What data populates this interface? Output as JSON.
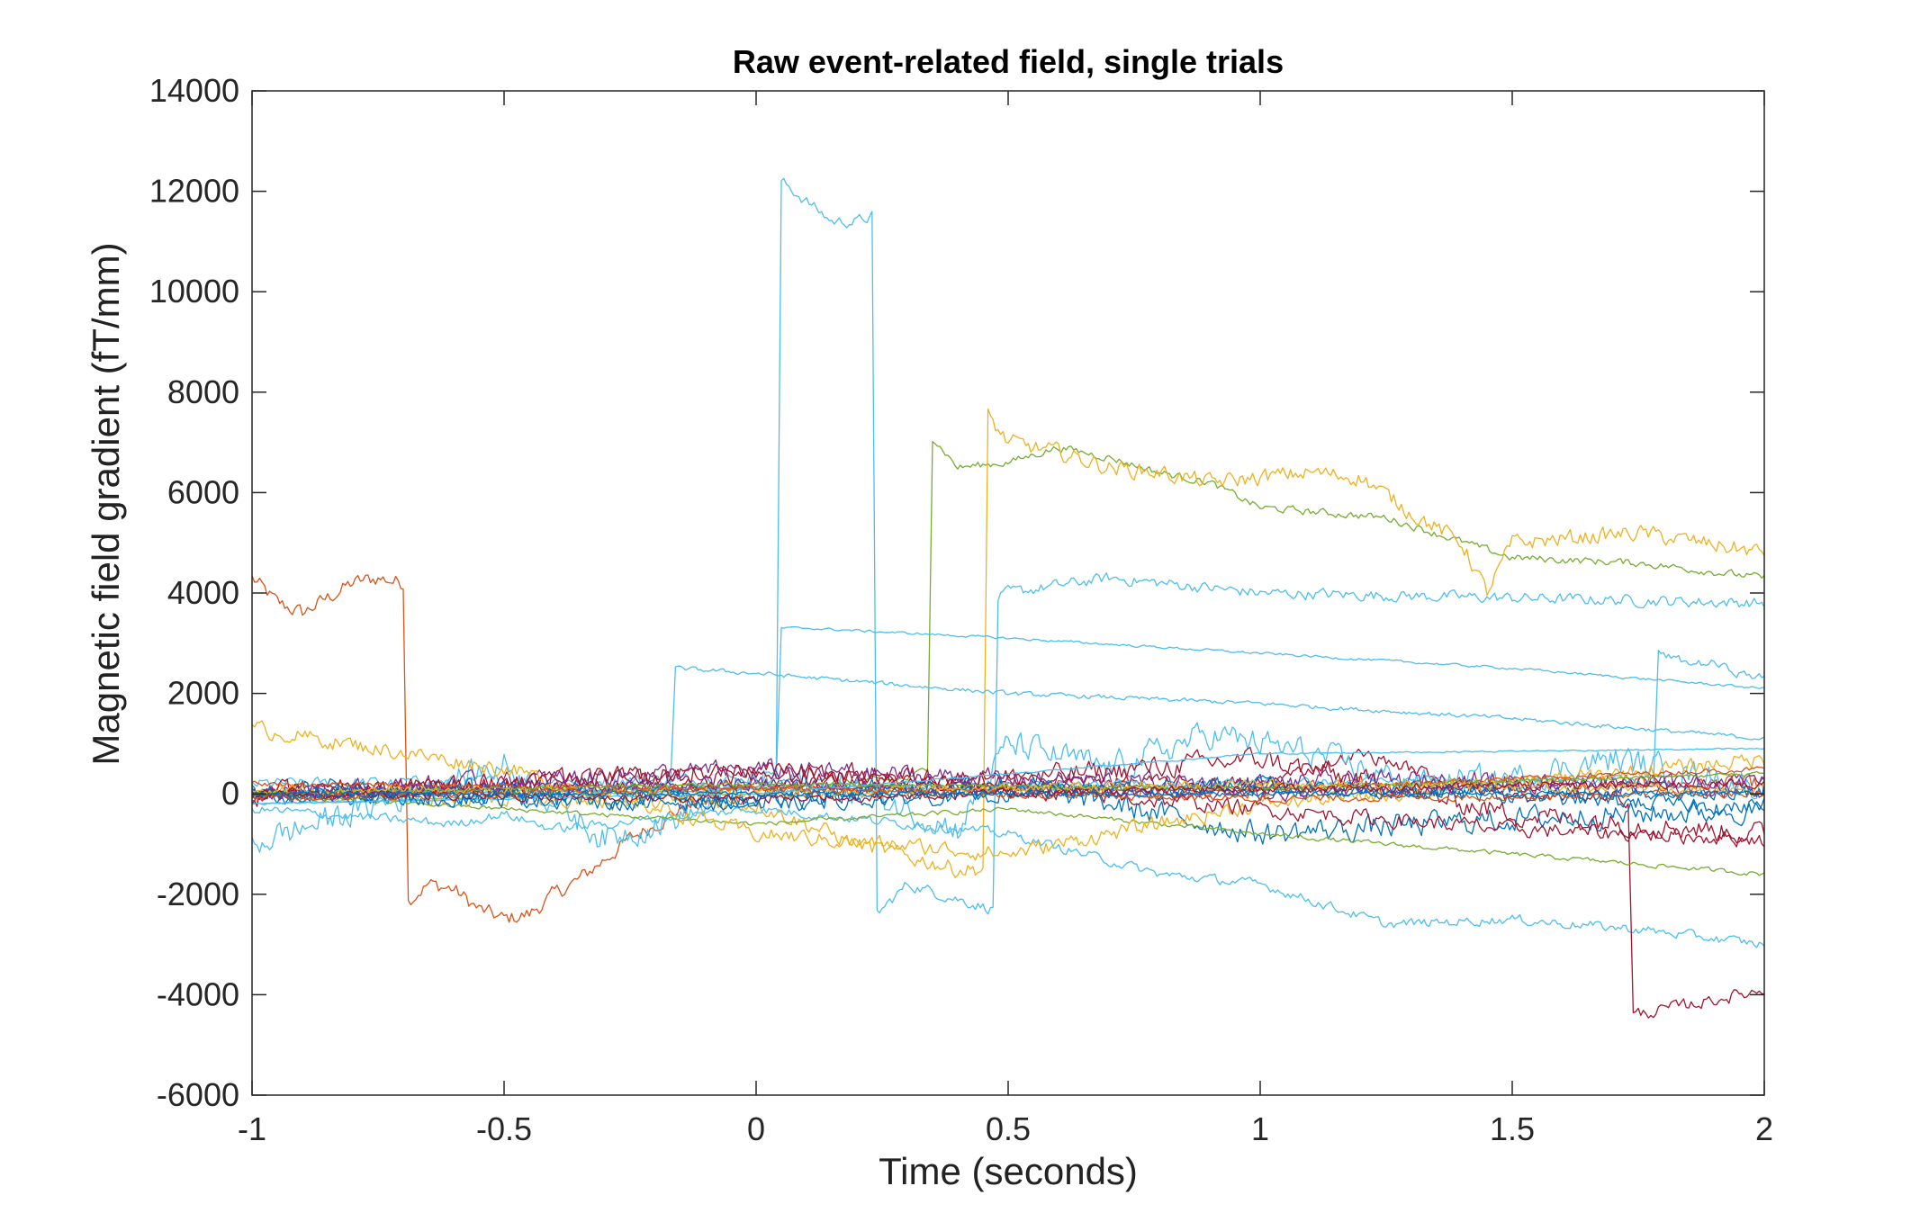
{
  "chart_data": {
    "type": "line",
    "title": "Raw event-related field, single trials",
    "xlabel": "Time (seconds)",
    "ylabel": "Magnetic field gradient (fT/mm)",
    "xlim": [
      -1,
      2
    ],
    "ylim": [
      -6000,
      14000
    ],
    "xticks": [
      -1,
      -0.5,
      0,
      0.5,
      1,
      1.5,
      2
    ],
    "xtick_labels": [
      "-1",
      "-0.5",
      "0",
      "0.5",
      "1",
      "1.5",
      "2"
    ],
    "yticks": [
      -6000,
      -4000,
      -2000,
      0,
      2000,
      4000,
      6000,
      8000,
      10000,
      12000,
      14000
    ],
    "ytick_labels": [
      "-6000",
      "-4000",
      "-2000",
      "0",
      "2000",
      "4000",
      "6000",
      "8000",
      "10000",
      "12000",
      "14000"
    ],
    "grid": false,
    "legend": "none",
    "colors": [
      "#0072BD",
      "#D95319",
      "#EDB120",
      "#7E2F8E",
      "#77AC30",
      "#4DBEEE",
      "#A2142F"
    ],
    "series": [
      {
        "color": "#D95319",
        "x": [
          -1,
          -0.95,
          -0.9,
          -0.85,
          -0.8,
          -0.75,
          -0.7,
          -0.69,
          -0.65,
          -0.6,
          -0.55,
          -0.5,
          -0.45,
          -0.4,
          -0.35,
          -0.3,
          -0.25,
          -0.2,
          -0.15,
          -0.1,
          0,
          0.5,
          1,
          1.5,
          2
        ],
        "y": [
          4300,
          3800,
          3600,
          3900,
          4200,
          4300,
          4200,
          -2100,
          -1800,
          -1900,
          -2300,
          -2500,
          -2400,
          -2000,
          -1700,
          -1300,
          -900,
          -600,
          -300,
          -200,
          0,
          100,
          100,
          200,
          200
        ],
        "noise": 250
      },
      {
        "color": "#4DBEEE",
        "x": [
          -1,
          0,
          0.04,
          0.05,
          0.1,
          0.15,
          0.2,
          0.23,
          0.24,
          0.3,
          0.4,
          0.47,
          0.48,
          0.5,
          0.7,
          1,
          1.5,
          2
        ],
        "y": [
          200,
          300,
          500,
          12200,
          11800,
          11400,
          11400,
          11500,
          -2400,
          -1800,
          -2100,
          -2300,
          3900,
          4000,
          4300,
          4000,
          3900,
          3800
        ],
        "noise": 180
      },
      {
        "color": "#77AC30",
        "x": [
          -1,
          0,
          0.3,
          0.34,
          0.35,
          0.4,
          0.5,
          0.6,
          0.7,
          0.8,
          0.9,
          1,
          1.25,
          1.5,
          1.75,
          2
        ],
        "y": [
          0,
          100,
          300,
          500,
          7100,
          6500,
          6600,
          6900,
          6700,
          6400,
          6200,
          5700,
          5500,
          4700,
          4600,
          4300
        ],
        "noise": 120
      },
      {
        "color": "#EDB120",
        "x": [
          -1,
          0,
          0.2,
          0.4,
          0.45,
          0.46,
          0.5,
          0.6,
          0.7,
          0.8,
          0.9,
          1,
          1.1,
          1.2,
          1.3,
          1.4,
          1.45,
          1.5,
          1.75,
          2
        ],
        "y": [
          0,
          -200,
          -1000,
          -1500,
          -1500,
          7500,
          7000,
          6800,
          6500,
          6400,
          6200,
          6300,
          6400,
          6300,
          5600,
          5000,
          4000,
          5000,
          5200,
          4800
        ],
        "noise": 260
      },
      {
        "color": "#4DBEEE",
        "x": [
          -1,
          -0.2,
          -0.17,
          -0.16,
          0,
          0.5,
          1,
          1.5,
          2
        ],
        "y": [
          0,
          100,
          200,
          2500,
          2400,
          2000,
          1800,
          1500,
          1100
        ],
        "noise": 70
      },
      {
        "color": "#4DBEEE",
        "x": [
          -1,
          0,
          0.04,
          0.05,
          0.1,
          0.5,
          1,
          1.5,
          2
        ],
        "y": [
          -200,
          100,
          300,
          3300,
          3300,
          3100,
          2800,
          2500,
          2100
        ],
        "noise": 40
      },
      {
        "color": "#4DBEEE",
        "x": [
          -1,
          -0.6,
          -0.5,
          -0.4,
          0,
          0.5,
          0.8,
          1,
          1.25,
          1.5,
          1.75,
          2
        ],
        "y": [
          -300,
          -600,
          -400,
          -700,
          -300,
          -800,
          -1600,
          -1800,
          -2600,
          -2500,
          -2700,
          -3000
        ],
        "noise": 150
      },
      {
        "color": "#A2142F",
        "x": [
          -1,
          0,
          0.5,
          1,
          1.2,
          1.5,
          1.7,
          1.73,
          1.74,
          1.8,
          1.9,
          2
        ],
        "y": [
          0,
          200,
          300,
          200,
          800,
          -100,
          0,
          -200,
          -4400,
          -4300,
          -4100,
          -3900
        ],
        "noise": 200
      },
      {
        "color": "#4DBEEE",
        "x": [
          -1,
          1.7,
          1.78,
          1.79,
          1.85,
          1.9,
          1.95,
          2
        ],
        "y": [
          0,
          300,
          200,
          2800,
          2600,
          2600,
          2400,
          2300
        ],
        "noise": 130
      },
      {
        "color": "#4DBEEE",
        "x": [
          -1,
          -0.5,
          -0.3,
          -0.1,
          0,
          0.2,
          0.4,
          0.5,
          0.7,
          0.9,
          1.1,
          1.3,
          1.5,
          1.7,
          2
        ],
        "y": [
          -1000,
          600,
          -900,
          -300,
          300,
          100,
          -700,
          1000,
          500,
          1200,
          800,
          200,
          300,
          700,
          100
        ],
        "noise": 450
      },
      {
        "color": "#A2142F",
        "x": [
          -1,
          0,
          0.5,
          1,
          1.5,
          2
        ],
        "y": [
          0,
          400,
          300,
          700,
          -400,
          -800
        ],
        "noise": 350
      },
      {
        "color": "#0072BD",
        "x": [
          -1,
          0,
          0.5,
          1,
          1.5,
          2
        ],
        "y": [
          100,
          -100,
          200,
          -800,
          -500,
          -300
        ],
        "noise": 380
      },
      {
        "color": "#77AC30",
        "x": [
          -1,
          0,
          0.5,
          1,
          1.5,
          2
        ],
        "y": [
          0,
          -600,
          -300,
          -800,
          -1200,
          -1600
        ],
        "noise": 70
      },
      {
        "color": "#7E2F8E",
        "x": [
          -1,
          0,
          0.5,
          1,
          1.5,
          2
        ],
        "y": [
          0,
          500,
          300,
          200,
          300,
          100
        ],
        "noise": 300
      },
      {
        "color": "#EDB120",
        "x": [
          -1,
          -0.5,
          0,
          0.5,
          1,
          1.5,
          2
        ],
        "y": [
          1300,
          500,
          -800,
          -1200,
          -200,
          200,
          700
        ],
        "noise": 250
      },
      {
        "color": "#A2142F",
        "x": [
          -1,
          0,
          1,
          1.5,
          2
        ],
        "y": [
          0,
          500,
          -300,
          -700,
          -900
        ],
        "noise": 250
      },
      {
        "color": "#D95319",
        "x": [
          -1,
          0,
          1,
          2
        ],
        "y": [
          200,
          100,
          100,
          500
        ],
        "noise": 80
      },
      {
        "color": "#0072BD",
        "x": [
          -1,
          0,
          1,
          2
        ],
        "y": [
          0,
          0,
          100,
          0
        ],
        "noise": 260
      },
      {
        "color": "#7E2F8E",
        "x": [
          -1,
          0,
          1,
          2
        ],
        "y": [
          0,
          200,
          0,
          300
        ],
        "noise": 220
      },
      {
        "color": "#4DBEEE",
        "x": [
          -1,
          0,
          0.5,
          1,
          2
        ],
        "y": [
          -200,
          0,
          400,
          800,
          900
        ],
        "noise": 25
      },
      {
        "color": "#0072BD",
        "x": [
          -1,
          0,
          0.5,
          1,
          2
        ],
        "y": [
          0,
          -200,
          0,
          200,
          -300
        ],
        "noise": 250
      },
      {
        "color": "#77AC30",
        "x": [
          -1,
          0,
          1,
          2
        ],
        "y": [
          0,
          200,
          100,
          400
        ],
        "noise": 60
      },
      {
        "color": "#EDB120",
        "x": [
          -1,
          0,
          1,
          2
        ],
        "y": [
          100,
          0,
          200,
          100
        ],
        "noise": 150
      },
      {
        "color": "#D95319",
        "x": [
          -1,
          0,
          1,
          2
        ],
        "y": [
          -100,
          100,
          -100,
          0
        ],
        "noise": 120
      },
      {
        "color": "#A2142F",
        "x": [
          -1,
          0,
          1,
          2
        ],
        "y": [
          0,
          -100,
          100,
          200
        ],
        "noise": 140
      },
      {
        "color": "#0072BD",
        "x": [
          -1,
          0,
          1,
          2
        ],
        "y": [
          0,
          0,
          0,
          0
        ],
        "noise": 80
      }
    ]
  }
}
